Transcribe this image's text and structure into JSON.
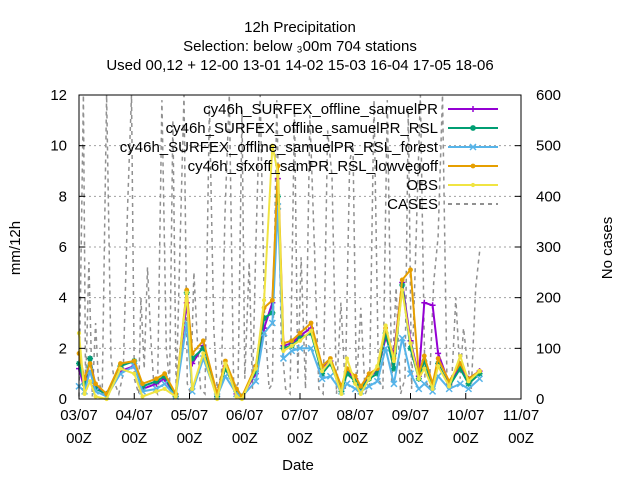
{
  "chart_data": {
    "type": "line",
    "title_lines": [
      "12h Precipitation",
      "Selection: below ₃00m    704 stations",
      "Used  00,12  + 12-00 13-01 14-02 15-03 16-04 17-05 18-06"
    ],
    "xlabel": "Date",
    "ylabel": "mm/12h",
    "y2label": "No cases",
    "ylim": [
      0,
      12
    ],
    "y2lim": [
      0,
      600
    ],
    "yticks": [
      "0",
      "2",
      "4",
      "6",
      "8",
      "10",
      "12"
    ],
    "y2ticks": [
      "0",
      "100",
      "200",
      "300",
      "400",
      "500",
      "600"
    ],
    "xticks": [
      {
        "x": 0,
        "line1": "03/07",
        "line2": "00Z"
      },
      {
        "x": 1,
        "line1": "04/07",
        "line2": "00Z"
      },
      {
        "x": 2,
        "line1": "05/07",
        "line2": "00Z"
      },
      {
        "x": 3,
        "line1": "06/07",
        "line2": "00Z"
      },
      {
        "x": 4,
        "line1": "07/07",
        "line2": "00Z"
      },
      {
        "x": 5,
        "line1": "08/07",
        "line2": "00Z"
      },
      {
        "x": 6,
        "line1": "09/07",
        "line2": "00Z"
      },
      {
        "x": 7,
        "line1": "10/07",
        "line2": "00Z"
      },
      {
        "x": 8,
        "line1": "11/07",
        "line2": "00Z"
      }
    ],
    "grid": true,
    "legend_position": "top-right",
    "series": [
      {
        "name": "cy46h_SURFEX_offline_samuelPR",
        "color": "#9400d3",
        "marker": "plus",
        "x": [
          0,
          0.1,
          0.2,
          0.3,
          0.5,
          0.75,
          1,
          1.15,
          1.4,
          1.55,
          1.75,
          1.95,
          2.05,
          2.25,
          2.5,
          2.65,
          2.85,
          2.95,
          3.2,
          3.35,
          3.5,
          3.6,
          3.7,
          3.85,
          4,
          4.2,
          4.4,
          4.55,
          4.75,
          4.85,
          5,
          5.1,
          5.25,
          5.4,
          5.55,
          5.7,
          5.85,
          6,
          6.15,
          6.25,
          6.4,
          6.5,
          6.7,
          6.9,
          7.05,
          7.25
        ],
        "y": [
          1.2,
          0.4,
          1.6,
          0.5,
          0.2,
          1.1,
          1.3,
          0.4,
          0.6,
          0.8,
          0.1,
          3.8,
          1.4,
          2.1,
          0.1,
          1.3,
          0.2,
          0.1,
          1.0,
          2.8,
          3.8,
          8.7,
          2.1,
          2.2,
          2.5,
          2.8,
          1.2,
          1.5,
          0.4,
          1.1,
          0.8,
          0.4,
          0.9,
          1.1,
          2.4,
          1.8,
          4.6,
          2.3,
          0.9,
          3.8,
          3.7,
          1.8,
          0.6,
          1.3,
          0.8,
          1.1
        ]
      },
      {
        "name": "cy46h_SURFEX_offline_samuelPR_RSL",
        "color": "#009e73",
        "marker": "star",
        "x": [
          0,
          0.1,
          0.2,
          0.3,
          0.5,
          0.75,
          1,
          1.15,
          1.4,
          1.55,
          1.75,
          1.95,
          2.05,
          2.25,
          2.5,
          2.65,
          2.85,
          2.95,
          3.2,
          3.35,
          3.5,
          3.6,
          3.7,
          3.85,
          4,
          4.2,
          4.4,
          4.55,
          4.75,
          4.85,
          5,
          5.1,
          5.25,
          5.4,
          5.55,
          5.7,
          5.85,
          6,
          6.15,
          6.25,
          6.4,
          6.5,
          6.7,
          6.9,
          7.05,
          7.25
        ],
        "y": [
          1.4,
          0.6,
          1.6,
          0.4,
          0.2,
          1.3,
          1.5,
          0.5,
          0.7,
          0.9,
          0.1,
          4.2,
          1.6,
          2.0,
          0.1,
          1.2,
          0.3,
          0.1,
          1.1,
          3.2,
          3.4,
          8.0,
          2.0,
          2.1,
          2.4,
          2.6,
          1.0,
          1.4,
          0.3,
          1.0,
          0.7,
          0.4,
          0.8,
          1.0,
          2.6,
          1.2,
          4.5,
          2.0,
          0.8,
          1.5,
          0.5,
          1.4,
          0.5,
          1.2,
          0.6,
          1.0
        ]
      },
      {
        "name": "cy46h_SURFEX_offline_samuelPR_RSL_forest",
        "color": "#56b4e9",
        "marker": "x",
        "x": [
          0,
          0.1,
          0.2,
          0.3,
          0.5,
          0.75,
          1,
          1.15,
          1.4,
          1.55,
          1.75,
          1.95,
          2.05,
          2.25,
          2.5,
          2.65,
          2.85,
          2.95,
          3.2,
          3.35,
          3.5,
          3.6,
          3.7,
          3.85,
          4,
          4.2,
          4.4,
          4.55,
          4.75,
          4.85,
          5,
          5.1,
          5.25,
          5.4,
          5.55,
          5.7,
          5.85,
          6,
          6.15,
          6.25,
          6.4,
          6.5,
          6.7,
          6.9,
          7.05,
          7.25
        ],
        "y": [
          0.5,
          0.3,
          1.1,
          0.3,
          0.1,
          1.0,
          1.3,
          0.3,
          0.4,
          0.6,
          0.1,
          3.0,
          0.3,
          1.6,
          0.1,
          0.9,
          0.2,
          0.1,
          0.7,
          2.6,
          3.0,
          7.6,
          1.6,
          1.9,
          2.0,
          2.0,
          0.8,
          0.9,
          0.3,
          0.6,
          0.4,
          0.3,
          0.5,
          0.7,
          2.0,
          0.6,
          2.4,
          1.0,
          0.4,
          0.6,
          0.3,
          0.9,
          0.4,
          0.6,
          0.4,
          0.8
        ]
      },
      {
        "name": "cy46h_sfxoff_samPR_RSL_lowvegoff",
        "color": "#e69f00",
        "marker": "circle",
        "x": [
          0,
          0.1,
          0.2,
          0.3,
          0.5,
          0.75,
          1,
          1.15,
          1.4,
          1.55,
          1.75,
          1.95,
          2.05,
          2.25,
          2.5,
          2.65,
          2.85,
          2.95,
          3.2,
          3.35,
          3.5,
          3.6,
          3.7,
          3.85,
          4,
          4.2,
          4.4,
          4.55,
          4.75,
          4.85,
          5,
          5.1,
          5.25,
          5.4,
          5.55,
          5.7,
          5.85,
          6,
          6.15,
          6.25,
          6.4,
          6.5,
          6.7,
          6.9,
          7.05,
          7.25
        ],
        "y": [
          1.8,
          0.8,
          1.4,
          0.6,
          0.2,
          1.4,
          1.5,
          0.6,
          0.8,
          1.0,
          0.2,
          4.3,
          1.8,
          2.3,
          0.2,
          1.5,
          0.4,
          0.1,
          1.3,
          3.6,
          3.9,
          9.2,
          2.2,
          2.3,
          2.6,
          3.0,
          1.3,
          1.6,
          0.5,
          1.2,
          0.9,
          0.5,
          1.0,
          1.2,
          2.8,
          1.6,
          4.7,
          5.1,
          1.0,
          1.7,
          0.6,
          1.6,
          0.7,
          1.4,
          0.8,
          1.1
        ]
      },
      {
        "name": "OBS",
        "color": "#f0e442",
        "marker": "dot",
        "x": [
          0,
          0.1,
          0.2,
          0.3,
          0.5,
          0.75,
          1,
          1.15,
          1.4,
          1.55,
          1.75,
          1.95,
          2.05,
          2.25,
          2.5,
          2.65,
          2.85,
          2.95,
          3.2,
          3.35,
          3.5,
          3.6,
          3.7,
          3.85,
          4,
          4.2,
          4.4,
          4.55,
          4.75,
          4.85,
          5,
          5.1,
          5.25,
          5.4,
          5.55,
          5.7,
          5.85,
          6,
          6.15,
          6.25,
          6.4,
          6.5,
          6.7,
          6.9,
          7.05,
          7.25
        ],
        "y": [
          2.6,
          0.2,
          0.7,
          0.1,
          0.0,
          1.2,
          1.0,
          0.1,
          0.3,
          0.4,
          0.1,
          4.2,
          0.4,
          1.8,
          0.0,
          1.4,
          0.1,
          0.0,
          1.2,
          3.9,
          10.0,
          8.9,
          1.9,
          2.1,
          2.3,
          2.7,
          1.1,
          1.5,
          0.2,
          1.6,
          0.6,
          0.2,
          0.8,
          1.3,
          2.9,
          1.5,
          4.3,
          2.2,
          0.8,
          1.2,
          0.4,
          1.3,
          0.5,
          1.7,
          0.7,
          1.1
        ]
      }
    ],
    "cases": {
      "name": "CASES",
      "color": "#909090",
      "axis": "y2",
      "x": [
        0,
        0.08,
        0.12,
        0.18,
        0.24,
        0.3,
        0.35,
        0.42,
        0.5,
        0.58,
        0.65,
        0.72,
        0.8,
        0.88,
        0.95,
        1.0,
        1.08,
        1.12,
        1.18,
        1.24,
        1.3,
        1.36,
        1.42,
        1.5,
        1.58,
        1.64,
        1.7,
        1.76,
        1.82,
        1.9,
        1.96,
        2.02,
        2.08,
        2.14,
        2.2,
        2.28,
        2.36,
        2.44,
        2.5,
        2.58,
        2.64,
        2.72,
        2.8,
        2.88,
        2.95,
        3.0,
        3.08,
        3.14,
        3.2,
        3.28,
        3.36,
        3.44,
        3.5,
        3.58,
        3.66,
        3.74,
        3.82,
        3.9,
        3.96,
        4.02,
        4.1,
        4.18,
        4.26,
        4.34,
        4.42,
        4.5,
        4.58,
        4.66,
        4.74,
        4.82,
        4.9,
        4.96,
        5.02,
        5.1,
        5.18,
        5.26,
        5.34,
        5.42,
        5.5,
        5.58,
        5.66,
        5.74,
        5.82,
        5.9,
        5.96,
        6.02,
        6.1,
        6.18,
        6.26,
        6.34,
        6.42,
        6.5,
        6.58,
        6.66,
        6.74,
        6.82,
        6.9,
        6.96,
        7.02,
        7.1,
        7.18,
        7.26
      ],
      "y": [
        5,
        600,
        20,
        270,
        5,
        150,
        40,
        10,
        600,
        80,
        30,
        10,
        50,
        380,
        600,
        40,
        10,
        200,
        60,
        260,
        120,
        20,
        10,
        590,
        100,
        30,
        550,
        10,
        270,
        600,
        30,
        10,
        250,
        120,
        20,
        10,
        580,
        140,
        20,
        50,
        360,
        600,
        20,
        30,
        570,
        40,
        270,
        20,
        300,
        600,
        160,
        20,
        30,
        590,
        120,
        20,
        10,
        570,
        40,
        280,
        20,
        560,
        300,
        20,
        10,
        530,
        440,
        10,
        190,
        20,
        470,
        500,
        20,
        180,
        10,
        30,
        590,
        40,
        20,
        590,
        30,
        220,
        10,
        40,
        570,
        20,
        310,
        600,
        40,
        20,
        230,
        320,
        600,
        30,
        20,
        200,
        40,
        140,
        80,
        20,
        220,
        300
      ]
    }
  }
}
